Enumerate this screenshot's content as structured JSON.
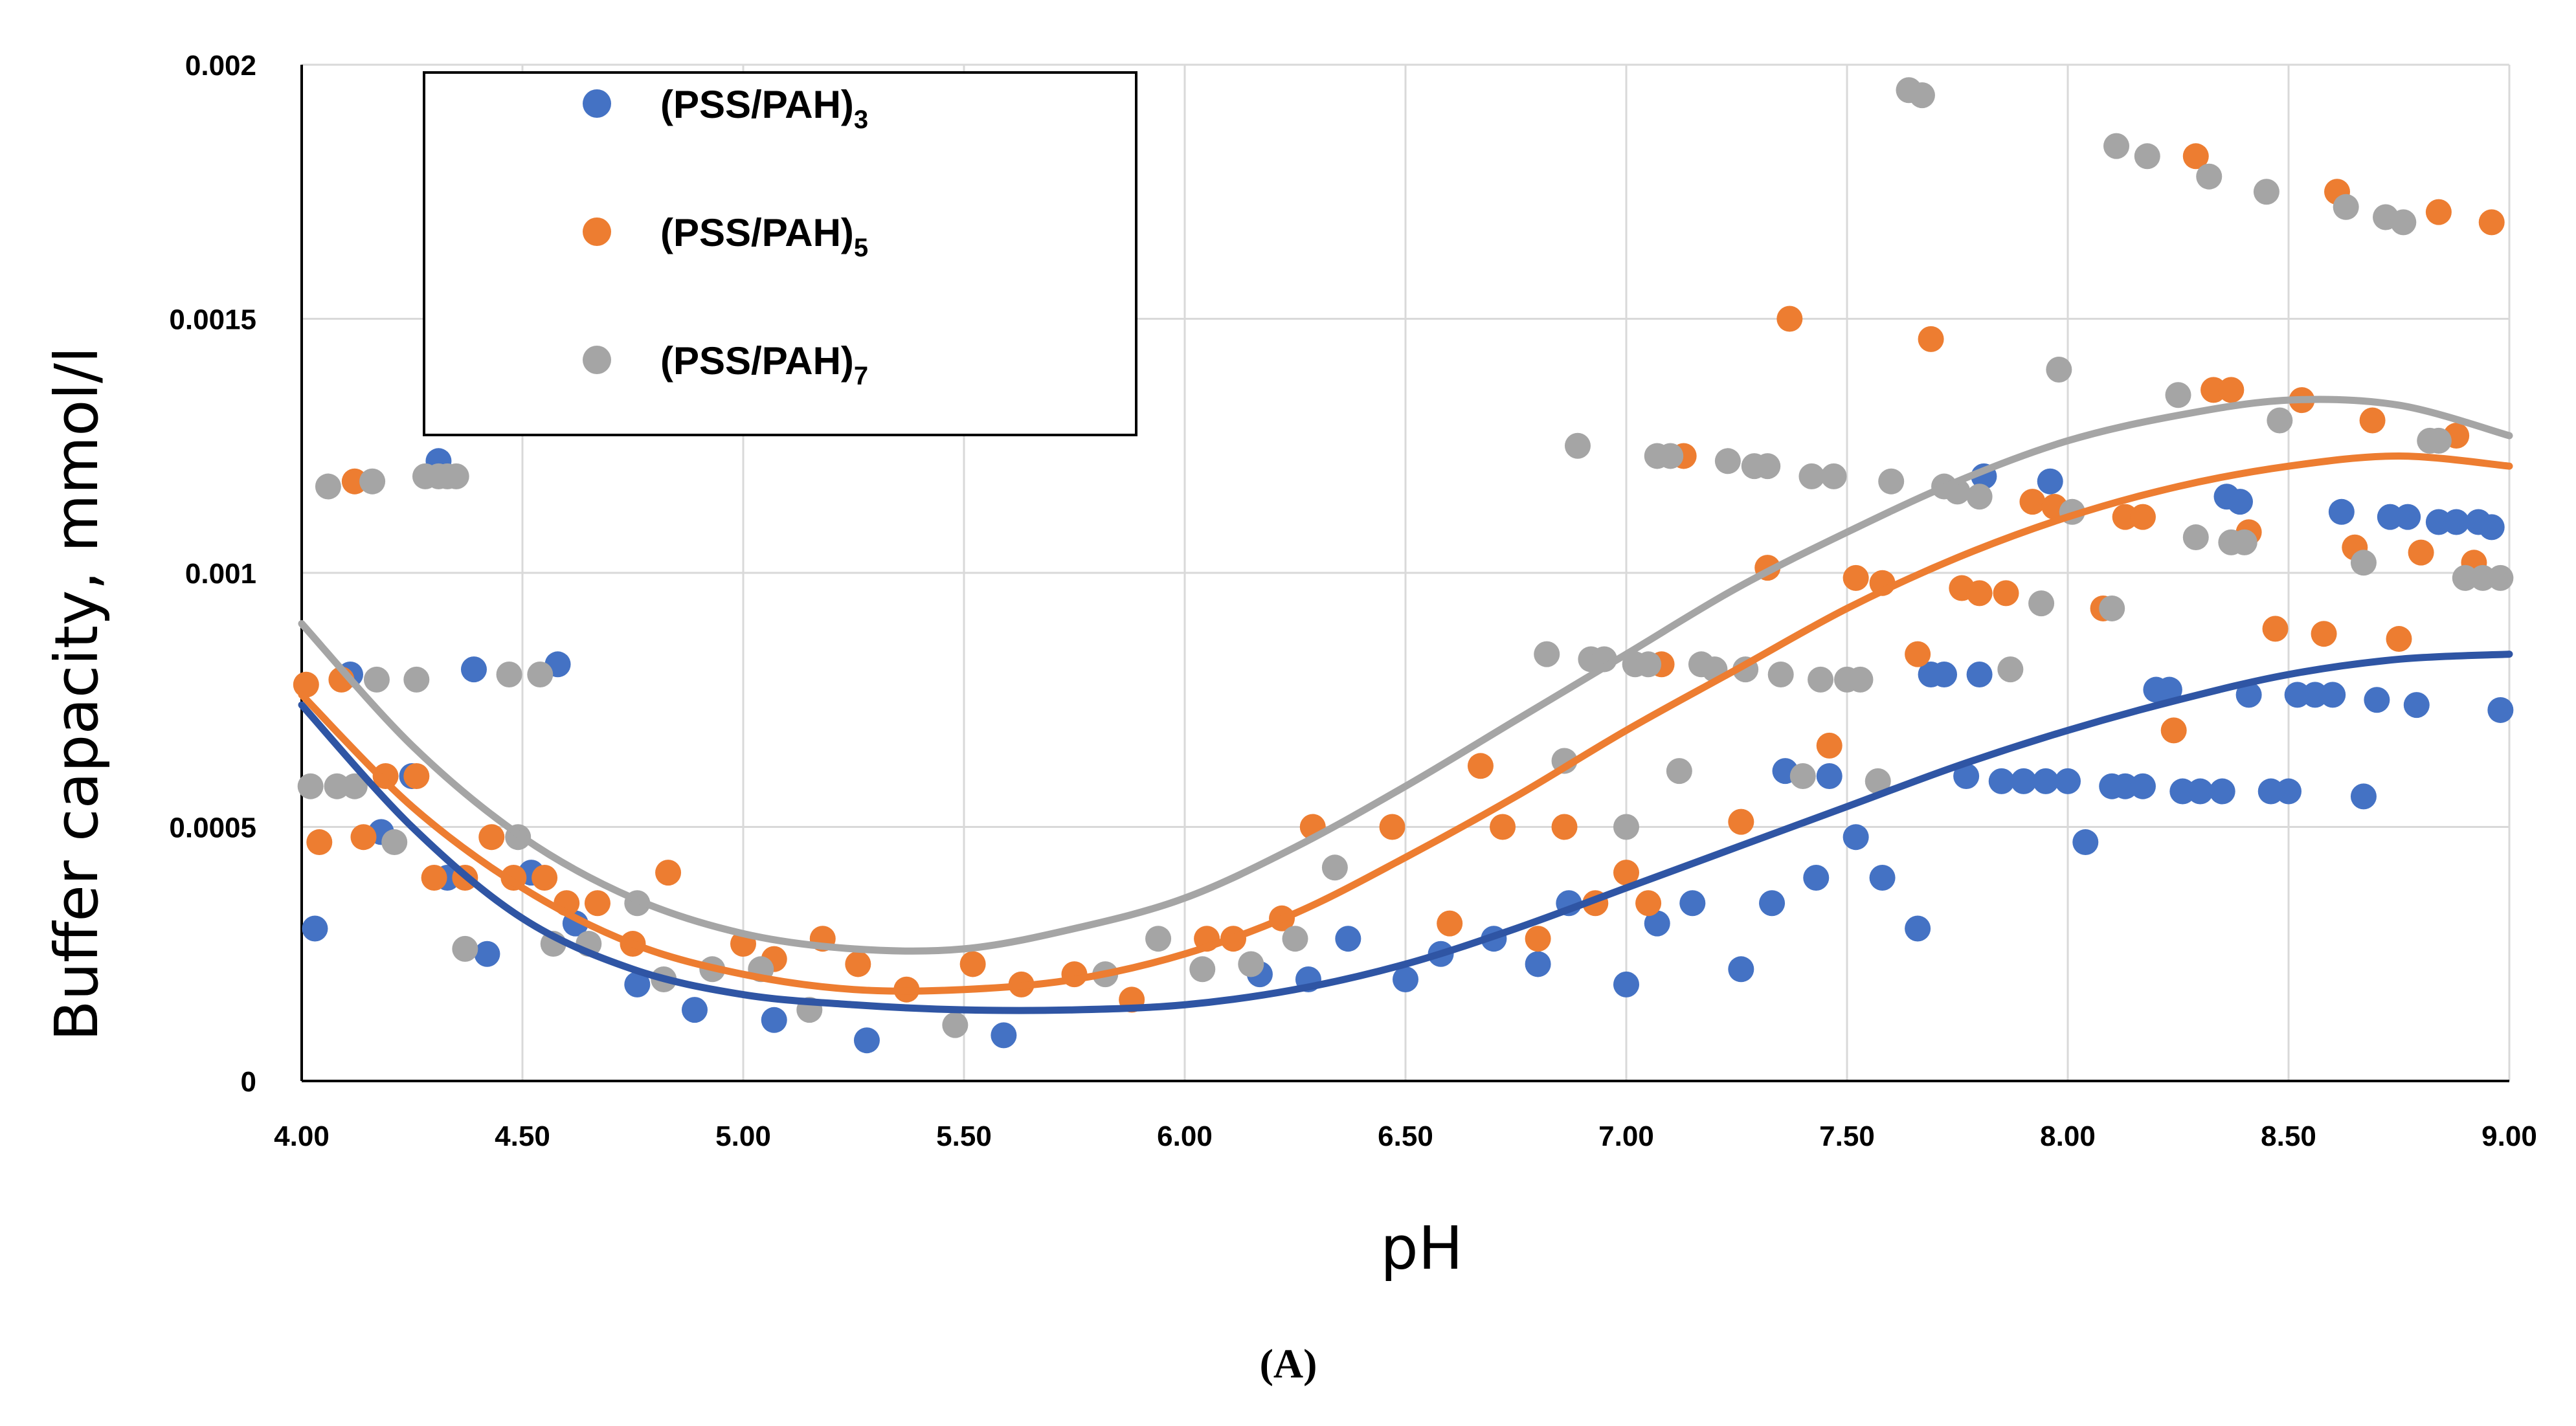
{
  "chart_data": {
    "type": "scatter",
    "xlabel": "pH",
    "ylabel": "Buffer capacity, mmol/l",
    "xlim": [
      4.0,
      9.0
    ],
    "ylim": [
      0,
      0.002
    ],
    "x_ticks": [
      "4.00",
      "4.50",
      "5.00",
      "5.50",
      "6.00",
      "6.50",
      "7.00",
      "7.50",
      "8.00",
      "8.50",
      "9.00"
    ],
    "y_ticks": [
      "0",
      "0.0005",
      "0.001",
      "0.0015",
      "0.002"
    ],
    "grid": true,
    "legend_position": "top-left",
    "series": [
      {
        "name": "(PSS/PAH)",
        "subscript": "3",
        "color": "#4472C4",
        "points": [
          [
            4.03,
            0.0003
          ],
          [
            4.11,
            0.0008
          ],
          [
            4.18,
            0.00049
          ],
          [
            4.25,
            0.0006
          ],
          [
            4.31,
            0.00122
          ],
          [
            4.33,
            0.0004
          ],
          [
            4.39,
            0.00081
          ],
          [
            4.42,
            0.00025
          ],
          [
            4.52,
            0.00041
          ],
          [
            4.58,
            0.00082
          ],
          [
            4.62,
            0.00031
          ],
          [
            4.76,
            0.00019
          ],
          [
            4.89,
            0.00014
          ],
          [
            5.07,
            0.00012
          ],
          [
            5.28,
            8e-05
          ],
          [
            5.59,
            9e-05
          ],
          [
            6.17,
            0.00021
          ],
          [
            6.28,
            0.0002
          ],
          [
            6.37,
            0.00028
          ],
          [
            6.5,
            0.0002
          ],
          [
            6.58,
            0.00025
          ],
          [
            6.7,
            0.00028
          ],
          [
            6.8,
            0.00023
          ],
          [
            6.87,
            0.00035
          ],
          [
            7.0,
            0.00019
          ],
          [
            7.07,
            0.00031
          ],
          [
            7.15,
            0.00035
          ],
          [
            7.26,
            0.00022
          ],
          [
            7.33,
            0.00035
          ],
          [
            7.36,
            0.00061
          ],
          [
            7.43,
            0.0004
          ],
          [
            7.46,
            0.0006
          ],
          [
            7.52,
            0.00048
          ],
          [
            7.58,
            0.0004
          ],
          [
            7.66,
            0.0003
          ],
          [
            7.69,
            0.0008
          ],
          [
            7.72,
            0.0008
          ],
          [
            7.77,
            0.0006
          ],
          [
            7.8,
            0.0008
          ],
          [
            7.81,
            0.00119
          ],
          [
            7.85,
            0.00059
          ],
          [
            7.9,
            0.00059
          ],
          [
            7.95,
            0.00059
          ],
          [
            7.96,
            0.00118
          ],
          [
            8.0,
            0.00059
          ],
          [
            8.04,
            0.00047
          ],
          [
            8.1,
            0.00058
          ],
          [
            8.13,
            0.00058
          ],
          [
            8.17,
            0.00058
          ],
          [
            8.2,
            0.00077
          ],
          [
            8.23,
            0.00077
          ],
          [
            8.26,
            0.00057
          ],
          [
            8.3,
            0.00057
          ],
          [
            8.35,
            0.00057
          ],
          [
            8.36,
            0.00115
          ],
          [
            8.39,
            0.00114
          ],
          [
            8.41,
            0.00076
          ],
          [
            8.46,
            0.00057
          ],
          [
            8.5,
            0.00057
          ],
          [
            8.52,
            0.00076
          ],
          [
            8.56,
            0.00076
          ],
          [
            8.6,
            0.00076
          ],
          [
            8.62,
            0.00112
          ],
          [
            8.67,
            0.00056
          ],
          [
            8.7,
            0.00075
          ],
          [
            8.73,
            0.00111
          ],
          [
            8.77,
            0.00111
          ],
          [
            8.79,
            0.00074
          ],
          [
            8.84,
            0.0011
          ],
          [
            8.88,
            0.0011
          ],
          [
            8.93,
            0.0011
          ],
          [
            8.96,
            0.00109
          ],
          [
            8.98,
            0.00073
          ]
        ],
        "trend": [
          [
            4.0,
            0.00074
          ],
          [
            4.25,
            0.0005
          ],
          [
            4.5,
            0.00032
          ],
          [
            4.75,
            0.00022
          ],
          [
            5.0,
            0.00017
          ],
          [
            5.25,
            0.00015
          ],
          [
            5.5,
            0.00014
          ],
          [
            5.75,
            0.00014
          ],
          [
            6.0,
            0.00015
          ],
          [
            6.25,
            0.00018
          ],
          [
            6.5,
            0.00023
          ],
          [
            6.75,
            0.0003
          ],
          [
            7.0,
            0.00038
          ],
          [
            7.25,
            0.00046
          ],
          [
            7.5,
            0.00054
          ],
          [
            7.75,
            0.00062
          ],
          [
            8.0,
            0.00069
          ],
          [
            8.25,
            0.00075
          ],
          [
            8.5,
            0.0008
          ],
          [
            8.75,
            0.00083
          ],
          [
            9.0,
            0.00084
          ]
        ]
      },
      {
        "name": "(PSS/PAH)",
        "subscript": "5",
        "color": "#ED7D31",
        "points": [
          [
            4.01,
            0.00078
          ],
          [
            4.04,
            0.00047
          ],
          [
            4.09,
            0.00079
          ],
          [
            4.12,
            0.00118
          ],
          [
            4.14,
            0.00048
          ],
          [
            4.19,
            0.0006
          ],
          [
            4.26,
            0.0006
          ],
          [
            4.3,
            0.0004
          ],
          [
            4.37,
            0.0004
          ],
          [
            4.43,
            0.00048
          ],
          [
            4.48,
            0.0004
          ],
          [
            4.55,
            0.0004
          ],
          [
            4.6,
            0.00035
          ],
          [
            4.67,
            0.00035
          ],
          [
            4.75,
            0.00027
          ],
          [
            4.83,
            0.00041
          ],
          [
            5.0,
            0.00027
          ],
          [
            5.07,
            0.00024
          ],
          [
            5.18,
            0.00028
          ],
          [
            5.26,
            0.00023
          ],
          [
            5.37,
            0.00018
          ],
          [
            5.52,
            0.00023
          ],
          [
            5.63,
            0.00019
          ],
          [
            5.75,
            0.00021
          ],
          [
            5.88,
            0.00016
          ],
          [
            6.05,
            0.00028
          ],
          [
            6.11,
            0.00028
          ],
          [
            6.22,
            0.00032
          ],
          [
            6.29,
            0.0005
          ],
          [
            6.47,
            0.0005
          ],
          [
            6.6,
            0.00031
          ],
          [
            6.67,
            0.00062
          ],
          [
            6.72,
            0.0005
          ],
          [
            6.8,
            0.00028
          ],
          [
            6.86,
            0.0005
          ],
          [
            6.93,
            0.00035
          ],
          [
            7.0,
            0.00041
          ],
          [
            7.05,
            0.00035
          ],
          [
            7.08,
            0.00082
          ],
          [
            7.13,
            0.00123
          ],
          [
            7.26,
            0.00051
          ],
          [
            7.32,
            0.00101
          ],
          [
            7.37,
            0.0015
          ],
          [
            7.46,
            0.00066
          ],
          [
            7.52,
            0.00099
          ],
          [
            7.58,
            0.00098
          ],
          [
            7.66,
            0.00084
          ],
          [
            7.69,
            0.00146
          ],
          [
            7.76,
            0.00097
          ],
          [
            7.8,
            0.00096
          ],
          [
            7.86,
            0.00096
          ],
          [
            7.92,
            0.00114
          ],
          [
            7.97,
            0.00113
          ],
          [
            8.08,
            0.00093
          ],
          [
            8.13,
            0.00111
          ],
          [
            8.17,
            0.00111
          ],
          [
            8.24,
            0.00069
          ],
          [
            8.29,
            0.00182
          ],
          [
            8.33,
            0.00136
          ],
          [
            8.37,
            0.00136
          ],
          [
            8.41,
            0.00108
          ],
          [
            8.47,
            0.00089
          ],
          [
            8.53,
            0.00134
          ],
          [
            8.58,
            0.00088
          ],
          [
            8.61,
            0.00175
          ],
          [
            8.65,
            0.00105
          ],
          [
            8.69,
            0.0013
          ],
          [
            8.75,
            0.00087
          ],
          [
            8.8,
            0.00104
          ],
          [
            8.84,
            0.00171
          ],
          [
            8.88,
            0.00127
          ],
          [
            8.92,
            0.00102
          ],
          [
            8.96,
            0.00169
          ]
        ],
        "trend": [
          [
            4.0,
            0.00076
          ],
          [
            4.25,
            0.00054
          ],
          [
            4.5,
            0.00038
          ],
          [
            4.75,
            0.00027
          ],
          [
            5.0,
            0.00021
          ],
          [
            5.25,
            0.00018
          ],
          [
            5.5,
            0.00018
          ],
          [
            5.75,
            0.0002
          ],
          [
            6.0,
            0.00025
          ],
          [
            6.25,
            0.00033
          ],
          [
            6.5,
            0.00044
          ],
          [
            6.75,
            0.00056
          ],
          [
            7.0,
            0.00069
          ],
          [
            7.25,
            0.00081
          ],
          [
            7.5,
            0.00093
          ],
          [
            7.75,
            0.00103
          ],
          [
            8.0,
            0.00111
          ],
          [
            8.25,
            0.00117
          ],
          [
            8.5,
            0.00121
          ],
          [
            8.75,
            0.00123
          ],
          [
            9.0,
            0.00121
          ]
        ]
      },
      {
        "name": "(PSS/PAH)",
        "subscript": "7",
        "color": "#A5A5A5",
        "points": [
          [
            4.02,
            0.00058
          ],
          [
            4.06,
            0.00117
          ],
          [
            4.08,
            0.00058
          ],
          [
            4.12,
            0.00058
          ],
          [
            4.16,
            0.00118
          ],
          [
            4.17,
            0.00079
          ],
          [
            4.21,
            0.00047
          ],
          [
            4.26,
            0.00079
          ],
          [
            4.28,
            0.00119
          ],
          [
            4.31,
            0.00119
          ],
          [
            4.33,
            0.00119
          ],
          [
            4.35,
            0.00119
          ],
          [
            4.37,
            0.00026
          ],
          [
            4.47,
            0.0008
          ],
          [
            4.49,
            0.00048
          ],
          [
            4.54,
            0.0008
          ],
          [
            4.57,
            0.00027
          ],
          [
            4.65,
            0.00027
          ],
          [
            4.76,
            0.00035
          ],
          [
            4.82,
            0.0002
          ],
          [
            4.93,
            0.00022
          ],
          [
            5.04,
            0.00022
          ],
          [
            5.15,
            0.00014
          ],
          [
            5.48,
            0.00011
          ],
          [
            5.82,
            0.00021
          ],
          [
            5.94,
            0.00028
          ],
          [
            6.04,
            0.00022
          ],
          [
            6.15,
            0.00023
          ],
          [
            6.25,
            0.00028
          ],
          [
            6.34,
            0.00042
          ],
          [
            6.82,
            0.00084
          ],
          [
            6.86,
            0.00063
          ],
          [
            6.89,
            0.00125
          ],
          [
            6.92,
            0.00083
          ],
          [
            6.95,
            0.00083
          ],
          [
            7.0,
            0.0005
          ],
          [
            7.02,
            0.00082
          ],
          [
            7.05,
            0.00082
          ],
          [
            7.07,
            0.00123
          ],
          [
            7.12,
            0.00061
          ],
          [
            7.1,
            0.00123
          ],
          [
            7.17,
            0.00082
          ],
          [
            7.2,
            0.00081
          ],
          [
            7.23,
            0.00122
          ],
          [
            7.27,
            0.00081
          ],
          [
            7.29,
            0.00121
          ],
          [
            7.32,
            0.00121
          ],
          [
            7.35,
            0.0008
          ],
          [
            7.4,
            0.0006
          ],
          [
            7.42,
            0.00119
          ],
          [
            7.47,
            0.00119
          ],
          [
            7.44,
            0.00079
          ],
          [
            7.5,
            0.00079
          ],
          [
            7.53,
            0.00079
          ],
          [
            7.57,
            0.00059
          ],
          [
            7.6,
            0.00118
          ],
          [
            7.64,
            0.00195
          ],
          [
            7.67,
            0.00194
          ],
          [
            7.72,
            0.00117
          ],
          [
            7.75,
            0.00116
          ],
          [
            7.8,
            0.00115
          ],
          [
            7.87,
            0.00081
          ],
          [
            7.94,
            0.00094
          ],
          [
            7.98,
            0.0014
          ],
          [
            8.01,
            0.00112
          ],
          [
            8.1,
            0.00093
          ],
          [
            8.11,
            0.00184
          ],
          [
            8.18,
            0.00182
          ],
          [
            8.25,
            0.00135
          ],
          [
            8.29,
            0.00107
          ],
          [
            8.32,
            0.00178
          ],
          [
            8.37,
            0.00106
          ],
          [
            8.4,
            0.00106
          ],
          [
            8.45,
            0.00175
          ],
          [
            8.48,
            0.0013
          ],
          [
            8.63,
            0.00172
          ],
          [
            8.67,
            0.00102
          ],
          [
            8.72,
            0.0017
          ],
          [
            8.76,
            0.00169
          ],
          [
            8.82,
            0.00126
          ],
          [
            8.84,
            0.00126
          ],
          [
            8.9,
            0.00099
          ],
          [
            8.94,
            0.00099
          ],
          [
            8.98,
            0.00099
          ]
        ],
        "trend": [
          [
            4.0,
            0.0009
          ],
          [
            4.25,
            0.00066
          ],
          [
            4.5,
            0.00048
          ],
          [
            4.75,
            0.00036
          ],
          [
            5.0,
            0.00029
          ],
          [
            5.25,
            0.00026
          ],
          [
            5.5,
            0.00026
          ],
          [
            5.75,
            0.0003
          ],
          [
            6.0,
            0.00036
          ],
          [
            6.25,
            0.00046
          ],
          [
            6.5,
            0.00058
          ],
          [
            6.75,
            0.00071
          ],
          [
            7.0,
            0.00084
          ],
          [
            7.25,
            0.00097
          ],
          [
            7.5,
            0.00108
          ],
          [
            7.75,
            0.00118
          ],
          [
            8.0,
            0.00126
          ],
          [
            8.25,
            0.00131
          ],
          [
            8.5,
            0.00134
          ],
          [
            8.75,
            0.00133
          ],
          [
            9.0,
            0.00127
          ]
        ]
      }
    ]
  },
  "caption": "(A)"
}
